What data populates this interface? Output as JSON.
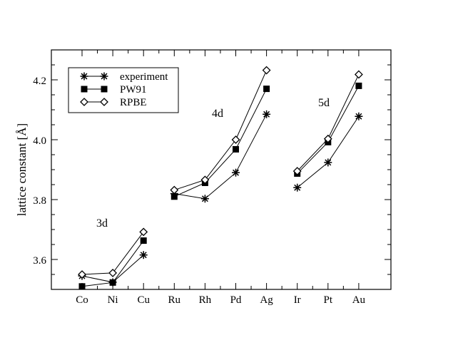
{
  "chart_data": {
    "type": "line",
    "title": "",
    "xlabel": "",
    "ylabel": "lattice constant [Å]",
    "categories": [
      "Co",
      "Ni",
      "Cu",
      "Ru",
      "Rh",
      "Pd",
      "Ag",
      "Ir",
      "Pt",
      "Au"
    ],
    "groups": [
      {
        "label": "3d",
        "indices": [
          0,
          1,
          2
        ]
      },
      {
        "label": "4d",
        "indices": [
          3,
          4,
          5,
          6
        ]
      },
      {
        "label": "5d",
        "indices": [
          7,
          8,
          9
        ]
      }
    ],
    "ylim": [
      3.5,
      4.3
    ],
    "yticks": [
      3.6,
      3.8,
      4.0,
      4.2
    ],
    "ytick_labels": [
      "3.6",
      "3.8",
      "4.0",
      "4.2"
    ],
    "grid": false,
    "legend_position": "top-left",
    "series": [
      {
        "name": "experiment",
        "marker": "asterisk",
        "color": "#000000",
        "values": [
          3.545,
          3.524,
          3.615,
          3.82,
          3.803,
          3.89,
          4.085,
          3.84,
          3.924,
          4.078
        ]
      },
      {
        "name": "PW91",
        "marker": "filled-square",
        "color": "#000000",
        "values": [
          3.51,
          3.523,
          3.663,
          3.81,
          3.856,
          3.968,
          4.17,
          3.887,
          3.992,
          4.18
        ]
      },
      {
        "name": "RPBE",
        "marker": "open-diamond",
        "color": "#000000",
        "values": [
          3.55,
          3.555,
          3.692,
          3.832,
          3.866,
          4.0,
          4.232,
          3.895,
          4.003,
          4.218
        ]
      }
    ]
  }
}
